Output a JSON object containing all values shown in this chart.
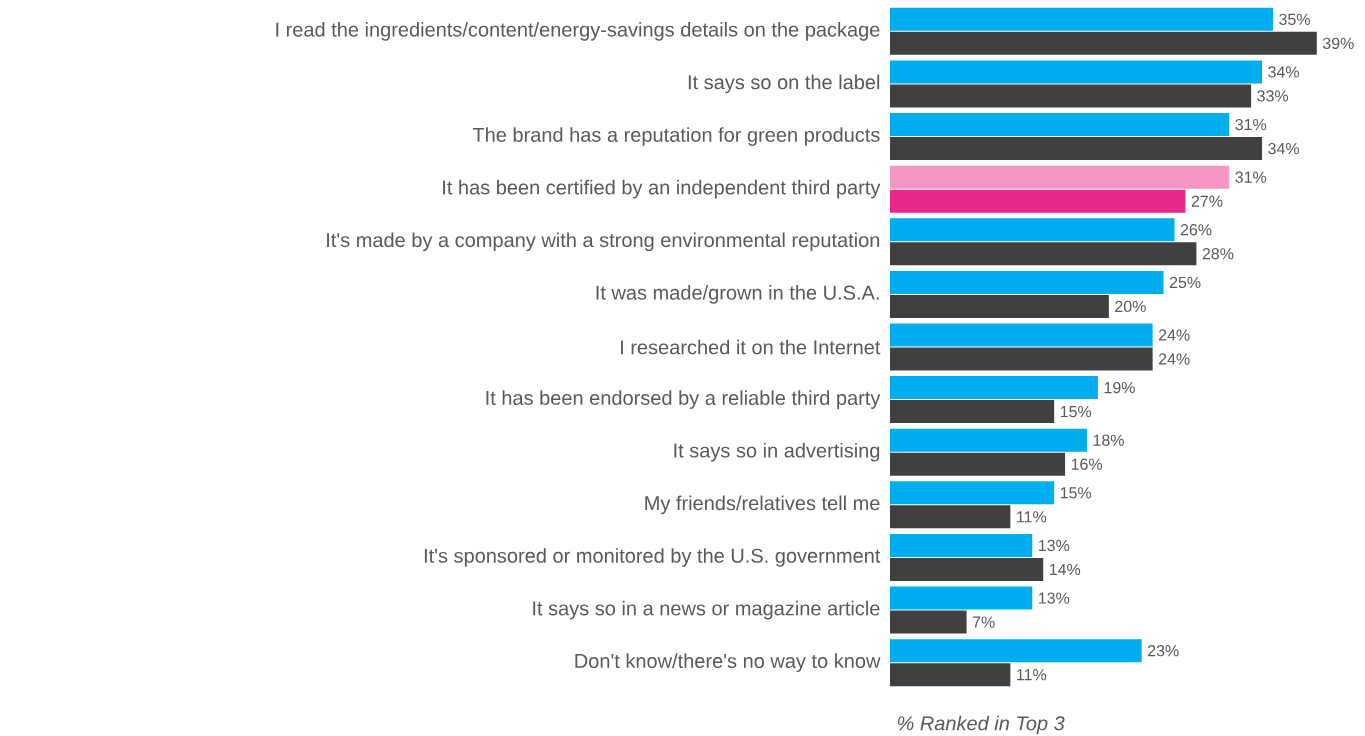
{
  "chart_data": {
    "type": "bar",
    "orientation": "horizontal",
    "xlabel": "% Ranked in Top 3",
    "categories": [
      "I read the ingredients/content/energy-savings details on the package",
      "It says so on the label",
      "The brand has a reputation for green products",
      "It has been certified by an independent third party",
      "It's made by a company with a strong environmental reputation",
      "It was made/grown in the U.S.A.",
      "I researched it on the Internet",
      "It has been endorsed by a reliable third party",
      "It says so in advertising",
      "My friends/relatives tell me",
      "It's sponsored or monitored by the U.S. government",
      "It says so in a news or magazine article",
      "Don't know/there's no way to know"
    ],
    "series": [
      {
        "colors": [
          "#00aeef",
          "#00aeef",
          "#00aeef",
          "#f596c4",
          "#00aeef",
          "#00aeef",
          "#00aeef",
          "#00aeef",
          "#00aeef",
          "#00aeef",
          "#00aeef",
          "#00aeef",
          "#00aeef"
        ],
        "values": [
          35,
          34,
          31,
          31,
          26,
          25,
          24,
          19,
          18,
          15,
          13,
          13,
          23
        ],
        "value_labels": [
          "35%",
          "34%",
          "31%",
          "31%",
          "26%",
          "25%",
          "24%",
          "19%",
          "18%",
          "15%",
          "13%",
          "13%",
          "23%"
        ]
      },
      {
        "colors": [
          "#404040",
          "#404040",
          "#404040",
          "#e8298a",
          "#404040",
          "#404040",
          "#404040",
          "#404040",
          "#404040",
          "#404040",
          "#404040",
          "#404040",
          "#404040"
        ],
        "values": [
          39,
          33,
          34,
          27,
          28,
          20,
          24,
          15,
          16,
          11,
          14,
          7,
          11
        ],
        "value_labels": [
          "39%",
          "33%",
          "34%",
          "27%",
          "28%",
          "20%",
          "24%",
          "15%",
          "16%",
          "11%",
          "14%",
          "7%",
          "11%"
        ]
      }
    ]
  }
}
